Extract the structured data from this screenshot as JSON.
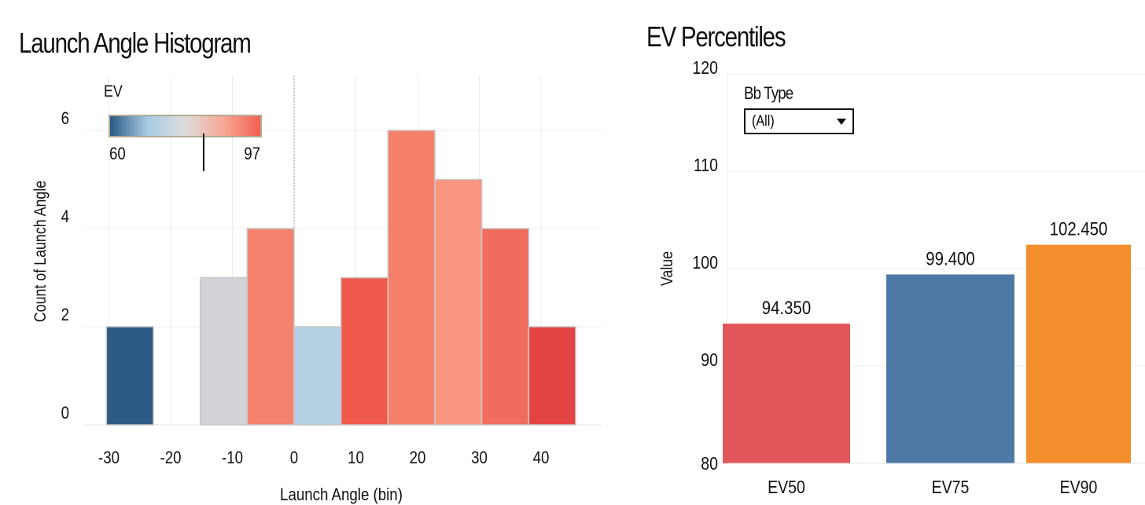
{
  "chart_data": [
    {
      "type": "bar",
      "title": "Launch Angle Histogram",
      "xlabel": "Launch Angle (bin)",
      "ylabel": "Count of Launch Angle",
      "x_ticks": [
        "-30",
        "-20",
        "-10",
        "0",
        "10",
        "20",
        "30",
        "40"
      ],
      "x_tick_values": [
        -30,
        -20,
        -10,
        0,
        10,
        20,
        30,
        40
      ],
      "y_ticks": [
        "0",
        "2",
        "4",
        "6"
      ],
      "y_tick_values": [
        0,
        2,
        4,
        6
      ],
      "xlim": [
        -34,
        50
      ],
      "ylim": [
        0,
        7.1
      ],
      "grid": true,
      "bins": [
        {
          "start": -30.4,
          "end": -22.8,
          "count": 2,
          "color": "#2e5a87"
        },
        {
          "start": -15.2,
          "end": -7.6,
          "count": 3,
          "color": "#d1d3d7"
        },
        {
          "start": -7.6,
          "end": 0,
          "count": 4,
          "color": "#f4826d"
        },
        {
          "start": 0,
          "end": 7.6,
          "count": 2,
          "color": "#b4d0e2"
        },
        {
          "start": 7.6,
          "end": 15.2,
          "count": 3,
          "color": "#ef5a4d"
        },
        {
          "start": 15.2,
          "end": 22.8,
          "count": 6,
          "color": "#f5806a"
        },
        {
          "start": 22.8,
          "end": 30.4,
          "count": 5,
          "color": "#fa967f"
        },
        {
          "start": 30.4,
          "end": 38,
          "count": 4,
          "color": "#f06d5e"
        },
        {
          "start": 38,
          "end": 45.6,
          "count": 2,
          "color": "#e34545"
        }
      ],
      "color_legend": {
        "title": "EV",
        "min_label": "60",
        "max_label": "97",
        "min": 60,
        "max": 97,
        "marker": 83,
        "colors": [
          "#2a5783",
          "#a6cbe3",
          "#dddddd",
          "#f8a796",
          "#f2604f"
        ]
      }
    },
    {
      "type": "bar",
      "title": "EV Percentiles",
      "ylabel": "Value",
      "categories": [
        "EV50",
        "EV75",
        "EV90"
      ],
      "values": [
        94.35,
        99.4,
        102.45
      ],
      "labels": [
        "94.350",
        "99.400",
        "102.450"
      ],
      "colors": [
        "#e15759",
        "#4e79a7",
        "#f28e2b"
      ],
      "y_ticks": [
        "80",
        "90",
        "100",
        "110",
        "120"
      ],
      "y_tick_values": [
        80,
        90,
        100,
        110,
        120
      ],
      "ylim": [
        80,
        121
      ],
      "grid": true
    }
  ],
  "filter": {
    "label": "Bb Type",
    "value": "(All)"
  }
}
